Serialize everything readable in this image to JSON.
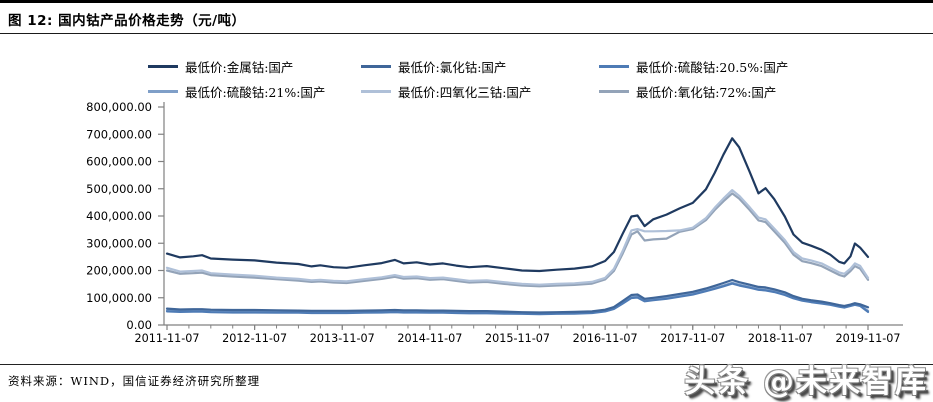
{
  "header": {
    "title": "图 12:  国内钴产品价格走势（元/吨）"
  },
  "footer": {
    "source": "资料来源：WIND，国信证券经济研究所整理",
    "watermark": "头条 @未来智库"
  },
  "chart_data": {
    "type": "line",
    "title": "国内钴产品价格走势",
    "unit": "元/吨",
    "grid": false,
    "legend_position": "top",
    "ylim": [
      0,
      800000
    ],
    "y_ticks": [
      "800,000.00",
      "700,000.00",
      "600,000.00",
      "500,000.00",
      "400,000.00",
      "300,000.00",
      "200,000.00",
      "100,000.00",
      "0.00"
    ],
    "x_tick_labels": [
      "2011-11-07",
      "2012-11-07",
      "2013-11-07",
      "2014-11-07",
      "2015-11-07",
      "2016-11-07",
      "2017-11-07",
      "2018-11-07",
      "2019-11-07"
    ],
    "axis_color": "#808080",
    "x": [
      2011.85,
      2012.0,
      2012.15,
      2012.25,
      2012.35,
      2012.6,
      2012.85,
      2013.1,
      2013.35,
      2013.5,
      2013.6,
      2013.75,
      2013.9,
      2014.1,
      2014.3,
      2014.45,
      2014.55,
      2014.7,
      2014.85,
      2015.0,
      2015.15,
      2015.3,
      2015.5,
      2015.7,
      2015.9,
      2016.1,
      2016.3,
      2016.5,
      2016.7,
      2016.85,
      2016.95,
      2017.05,
      2017.15,
      2017.22,
      2017.3,
      2017.4,
      2017.55,
      2017.7,
      2017.85,
      2018.0,
      2018.1,
      2018.2,
      2018.3,
      2018.38,
      2018.5,
      2018.6,
      2018.68,
      2018.78,
      2018.9,
      2019.0,
      2019.1,
      2019.2,
      2019.32,
      2019.42,
      2019.52,
      2019.58,
      2019.65,
      2019.7,
      2019.76,
      2019.85
    ],
    "series": [
      {
        "name": "最低价:金属钴:国产",
        "color": "#1F3A60",
        "values": [
          262000,
          248000,
          252000,
          256000,
          244000,
          240000,
          237000,
          229000,
          224000,
          215000,
          219000,
          212000,
          210000,
          219000,
          227000,
          239000,
          226000,
          230000,
          222000,
          226000,
          218000,
          212000,
          216000,
          208000,
          200000,
          198000,
          203000,
          207000,
          215000,
          235000,
          268000,
          335000,
          398000,
          402000,
          363000,
          388000,
          405000,
          428000,
          448000,
          498000,
          558000,
          625000,
          685000,
          652000,
          562000,
          483000,
          502000,
          462000,
          398000,
          332000,
          302000,
          291000,
          276000,
          258000,
          232000,
          226000,
          252000,
          299000,
          284000,
          250000
        ]
      },
      {
        "name": "最低价:氯化钴:国产",
        "color": "#3F6699",
        "values": [
          60000,
          57000,
          58000,
          58000,
          56000,
          55000,
          55000,
          54000,
          53000,
          52000,
          52000,
          52000,
          52000,
          53000,
          54000,
          55000,
          54000,
          54000,
          53000,
          53000,
          52000,
          51000,
          51000,
          49000,
          47000,
          46000,
          47000,
          48000,
          50000,
          56000,
          66000,
          88000,
          110000,
          112000,
          96000,
          100000,
          106000,
          114000,
          122000,
          134000,
          144000,
          154000,
          165000,
          157000,
          148000,
          140000,
          138000,
          131000,
          120000,
          106000,
          96000,
          91000,
          86000,
          80000,
          73000,
          70000,
          75000,
          80000,
          76000,
          65000
        ]
      },
      {
        "name": "最低价:硫酸钴:20.5%:国产",
        "color": "#4E7BB5",
        "values": [
          50000,
          48000,
          49000,
          49000,
          47000,
          46000,
          46000,
          45000,
          45000,
          44000,
          44000,
          44000,
          44000,
          45000,
          46000,
          47000,
          46000,
          46000,
          45000,
          45000,
          44000,
          43000,
          43000,
          42000,
          41000,
          40000,
          41000,
          42000,
          44000,
          50000,
          59000,
          79000,
          99000,
          101000,
          87000,
          91000,
          96000,
          104000,
          112000,
          124000,
          133000,
          142000,
          152000,
          145000,
          137000,
          129000,
          127000,
          121000,
          110000,
          98000,
          89000,
          84000,
          79000,
          74000,
          67000,
          64000,
          70000,
          74000,
          70000,
          48000
        ]
      },
      {
        "name": "最低价:硫酸钴:21%:国产",
        "color": "#7F9FC8",
        "values": [
          53000,
          51000,
          52000,
          52000,
          50000,
          49000,
          49000,
          48000,
          47000,
          46000,
          46000,
          46000,
          46000,
          47000,
          48000,
          49000,
          48000,
          48000,
          47000,
          47000,
          46000,
          45000,
          45000,
          44000,
          43000,
          42000,
          43000,
          44000,
          46000,
          52000,
          61000,
          81000,
          102000,
          104000,
          90000,
          94000,
          99000,
          107000,
          115000,
          127000,
          136000,
          145000,
          155000,
          148000,
          140000,
          132000,
          130000,
          124000,
          113000,
          100000,
          91000,
          86000,
          81000,
          76000,
          69000,
          66000,
          72000,
          76000,
          72000,
          52000
        ]
      },
      {
        "name": "最低价:四氧化三钴:国产",
        "color": "#AFC0D8",
        "values": [
          210000,
          196000,
          198000,
          200000,
          190000,
          185000,
          181000,
          174000,
          169000,
          164000,
          166000,
          162000,
          160000,
          168000,
          175000,
          183000,
          176000,
          178000,
          172000,
          174000,
          168000,
          162000,
          164000,
          157000,
          151000,
          148000,
          151000,
          153000,
          158000,
          173000,
          206000,
          272000,
          347000,
          352000,
          344000,
          344000,
          345000,
          347000,
          357000,
          392000,
          430000,
          464000,
          495000,
          474000,
          432000,
          394000,
          388000,
          354000,
          312000,
          268000,
          244000,
          237000,
          226000,
          210000,
          193000,
          188000,
          207000,
          226000,
          217000,
          173000
        ]
      },
      {
        "name": "最低价:氧化钴:72%:国产",
        "color": "#93A3B8",
        "values": [
          200000,
          188000,
          190000,
          192000,
          183000,
          178000,
          174000,
          168000,
          163000,
          158000,
          160000,
          156000,
          154000,
          162000,
          169000,
          177000,
          170000,
          172000,
          166000,
          168000,
          162000,
          156000,
          158000,
          151000,
          145000,
          142000,
          145000,
          147000,
          152000,
          167000,
          198000,
          262000,
          332000,
          344000,
          310000,
          314000,
          317000,
          342000,
          352000,
          385000,
          422000,
          454000,
          483000,
          464000,
          422000,
          384000,
          378000,
          344000,
          302000,
          258000,
          234000,
          227000,
          216000,
          200000,
          184000,
          178000,
          198000,
          216000,
          207000,
          166000
        ]
      }
    ]
  }
}
